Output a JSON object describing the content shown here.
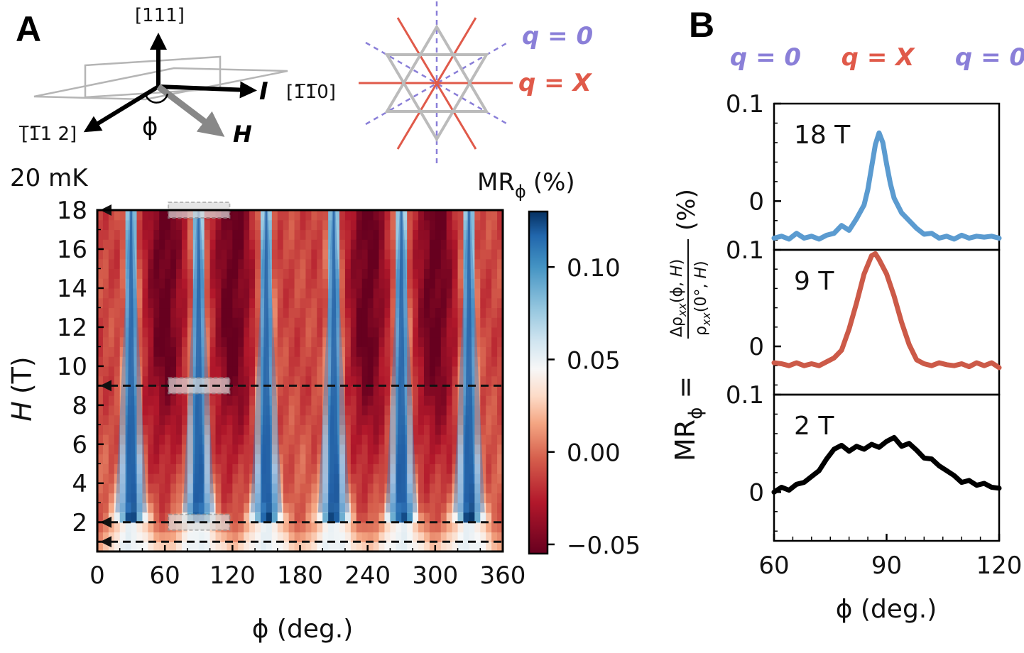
{
  "panels": {
    "a_label": "A",
    "b_label": "B"
  },
  "schematic": {
    "dir_111": "[111]",
    "dir_1m10": "[1̅1̅0]",
    "dir_m1m12": "[̅1̅1 2]",
    "current_label": "I",
    "field_label": "H",
    "angle_label": "ϕ",
    "temperature": "20 mK"
  },
  "kagome": {
    "q0_label": "q = 0",
    "qx_label": "q = X",
    "colors": {
      "q0": "#8a7fd8",
      "qx": "#e05a4a",
      "lattice": "#bbbbbb"
    }
  },
  "chart_data": [
    {
      "type": "heatmap",
      "title": "",
      "xlabel": "ϕ (deg.)",
      "ylabel_italic": "H",
      "ylabel_unit": "(T)",
      "xlim": [
        0,
        360
      ],
      "ylim": [
        0.5,
        18
      ],
      "xticks": [
        "0",
        "60",
        "120",
        "180",
        "240",
        "300",
        "360"
      ],
      "yticks": [
        "2",
        "4",
        "6",
        "8",
        "10",
        "12",
        "14",
        "16",
        "18"
      ],
      "colorbar": {
        "label_main": "MR",
        "label_sub": "ϕ",
        "label_unit": "(%)",
        "range": [
          -0.055,
          0.13
        ],
        "ticks": [
          "0.10",
          "0.05",
          "0.00",
          "−0.05"
        ],
        "colormap": "RdBu_r"
      },
      "blue_stripe_phi": [
        30,
        90,
        150,
        210,
        270,
        330
      ],
      "red_region_phi": [
        60,
        120,
        240,
        300
      ],
      "cut_fields_T": [
        18,
        9,
        2,
        1
      ],
      "highlight_boxes": [
        {
          "phi_range": [
            60,
            120
          ],
          "H": 18
        },
        {
          "phi_range": [
            60,
            120
          ],
          "H": 9
        },
        {
          "phi_range": [
            60,
            120
          ],
          "H": 2
        }
      ]
    },
    {
      "type": "line",
      "title": "",
      "xlabel": "ϕ (deg.)",
      "ylabel": "MRϕ = Δρxx(ϕ, H) / ρxx(0°, H) (%)",
      "xlim": [
        60,
        120
      ],
      "xticks": [
        "60",
        "90",
        "120"
      ],
      "top_labels": [
        "q = 0",
        "q = X",
        "q = 0"
      ],
      "series": [
        {
          "name": "18 T",
          "color": "#5b9bd0",
          "ylim": [
            -0.05,
            0.1
          ],
          "yticks": [
            "0.1",
            "0"
          ],
          "x": [
            60,
            62,
            64,
            66,
            68,
            70,
            72,
            74,
            76,
            78,
            80,
            82,
            84,
            85,
            86,
            87,
            88,
            89,
            90,
            91,
            92,
            94,
            96,
            98,
            100,
            102,
            104,
            106,
            108,
            110,
            112,
            114,
            116,
            118,
            120
          ],
          "values": [
            -0.038,
            -0.036,
            -0.039,
            -0.033,
            -0.038,
            -0.036,
            -0.039,
            -0.035,
            -0.033,
            -0.025,
            -0.03,
            -0.018,
            -0.004,
            0.012,
            0.035,
            0.058,
            0.07,
            0.06,
            0.038,
            0.018,
            0.003,
            -0.012,
            -0.02,
            -0.028,
            -0.034,
            -0.033,
            -0.038,
            -0.036,
            -0.039,
            -0.035,
            -0.038,
            -0.036,
            -0.037,
            -0.036,
            -0.038
          ]
        },
        {
          "name": "9 T",
          "color": "#cc5a48",
          "ylim": [
            -0.05,
            0.1
          ],
          "yticks": [
            "0.1",
            "0"
          ],
          "x": [
            60,
            62,
            64,
            66,
            68,
            70,
            72,
            74,
            76,
            78,
            80,
            82,
            84,
            86,
            87,
            88,
            90,
            92,
            94,
            96,
            98,
            100,
            102,
            104,
            106,
            108,
            110,
            112,
            114,
            116,
            118,
            120
          ],
          "values": [
            -0.017,
            -0.018,
            -0.02,
            -0.017,
            -0.02,
            -0.018,
            -0.02,
            -0.016,
            -0.012,
            -0.004,
            0.018,
            0.045,
            0.075,
            0.094,
            0.096,
            0.09,
            0.075,
            0.052,
            0.025,
            0.002,
            -0.014,
            -0.018,
            -0.02,
            -0.017,
            -0.019,
            -0.02,
            -0.018,
            -0.021,
            -0.017,
            -0.02,
            -0.017,
            -0.022
          ]
        },
        {
          "name": "2 T",
          "color": "#000000",
          "ylim": [
            -0.05,
            0.1
          ],
          "yticks": [
            "0.1",
            "0"
          ],
          "x": [
            60,
            62,
            64,
            66,
            68,
            70,
            72,
            74,
            76,
            78,
            80,
            82,
            84,
            86,
            88,
            90,
            92,
            94,
            96,
            98,
            100,
            102,
            104,
            106,
            108,
            110,
            112,
            114,
            116,
            118,
            120
          ],
          "values": [
            0.0,
            0.005,
            0.002,
            0.008,
            0.01,
            0.016,
            0.022,
            0.034,
            0.044,
            0.048,
            0.042,
            0.047,
            0.044,
            0.049,
            0.046,
            0.052,
            0.056,
            0.047,
            0.05,
            0.043,
            0.035,
            0.034,
            0.027,
            0.022,
            0.017,
            0.01,
            0.012,
            0.007,
            0.009,
            0.005,
            0.004
          ]
        }
      ]
    }
  ]
}
